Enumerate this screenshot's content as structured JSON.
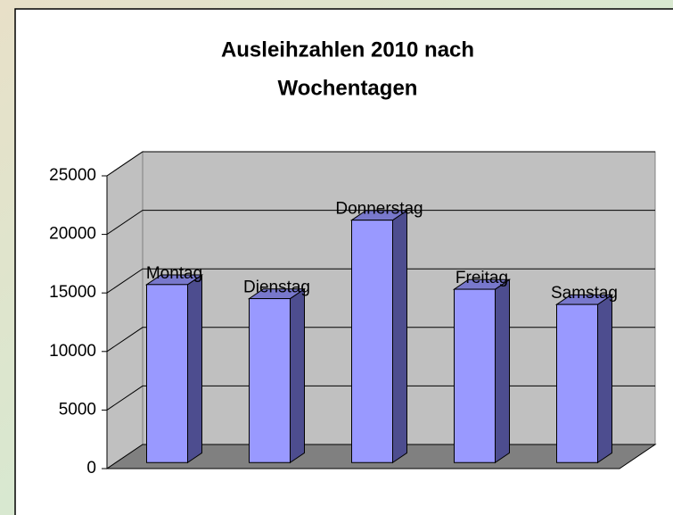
{
  "chart_data": {
    "type": "bar3d",
    "title_lines": [
      "Ausleihzahlen 2010 nach",
      "Wochentagen"
    ],
    "categories": [
      "Montag",
      "Dienstag",
      "Donnerstag",
      "Freitag",
      "Samstag"
    ],
    "values": [
      15200,
      14000,
      20700,
      14800,
      13500
    ],
    "color": "#9999ff",
    "ylim": [
      0,
      25000
    ],
    "yticks": [
      0,
      5000,
      10000,
      15000,
      20000,
      25000
    ],
    "grid": true
  }
}
